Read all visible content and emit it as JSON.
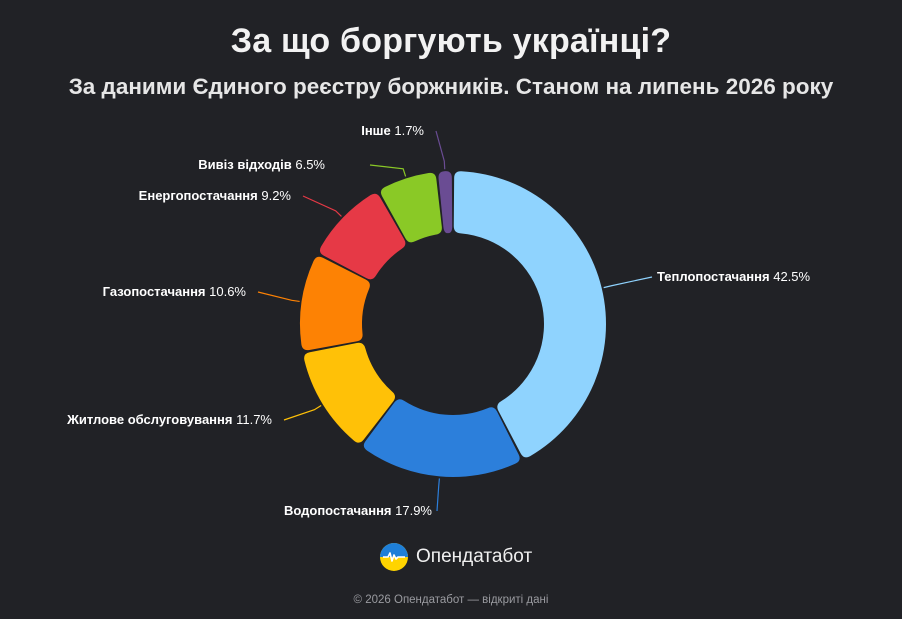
{
  "title": "За що боргують українці?",
  "subtitle": "За даними Єдиного реєстру боржників. Станом на липень 2026 року",
  "chart_data": {
    "type": "pie",
    "donut": true,
    "start_angle_deg": 0,
    "direction": "clockwise",
    "slices": [
      {
        "label": "Теплопостачання",
        "value": 42.5,
        "display": "42.5%",
        "color": "#8fd3fe"
      },
      {
        "label": "Водопостачання",
        "value": 17.9,
        "display": "17.9%",
        "color": "#2c7fdb"
      },
      {
        "label": "Житлове обслуговування",
        "value": 11.7,
        "display": "11.7%",
        "color": "#ffc107"
      },
      {
        "label": "Газопостачання",
        "value": 10.6,
        "display": "10.6%",
        "color": "#fd8204"
      },
      {
        "label": "Енергопостачання",
        "value": 9.2,
        "display": "9.2%",
        "color": "#e63946"
      },
      {
        "label": "Вивіз відходів",
        "value": 6.5,
        "display": "6.5%",
        "color": "#8ac926"
      },
      {
        "label": "Інше",
        "value": 1.7,
        "display": "1.7%",
        "color": "#6a4c93"
      }
    ]
  },
  "brand": {
    "name": "Опендатабот",
    "logo_icon": "opendatabot-logo-icon"
  },
  "footer": "© 2026 Опендатабот — відкриті дані"
}
